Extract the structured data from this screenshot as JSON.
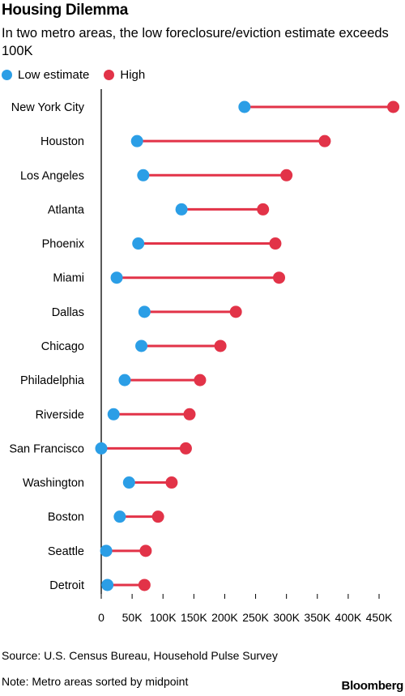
{
  "header": {
    "title": "Housing Dilemma",
    "subtitle": "In two metro areas, the low foreclosure/eviction estimate exceeds 100K"
  },
  "legend": {
    "low_label": "Low estimate",
    "high_label": "High"
  },
  "colors": {
    "low": "#2b9ee6",
    "high": "#e23348",
    "line": "#e23348",
    "axis": "#000000"
  },
  "footer": {
    "source": "Source: U.S. Census Bureau, Household Pulse Survey",
    "note": "Note: Metro areas sorted by midpoint",
    "brand": "Bloomberg"
  },
  "chart_data": {
    "type": "dumbbell",
    "title": "Housing Dilemma",
    "categories": [
      "New York City",
      "Houston",
      "Los Angeles",
      "Atlanta",
      "Phoenix",
      "Miami",
      "Dallas",
      "Chicago",
      "Philadelphia",
      "Riverside",
      "San Francisco",
      "Washington",
      "Boston",
      "Seattle",
      "Detroit"
    ],
    "series": [
      {
        "name": "Low estimate",
        "values": [
          232000,
          58000,
          68000,
          130000,
          60000,
          25000,
          70000,
          65000,
          38000,
          20000,
          0,
          45000,
          30000,
          8000,
          10000
        ]
      },
      {
        "name": "High",
        "values": [
          473000,
          362000,
          300000,
          262000,
          282000,
          288000,
          218000,
          193000,
          160000,
          143000,
          137000,
          114000,
          92000,
          72000,
          70000
        ]
      }
    ],
    "xlim": [
      0,
      450000
    ],
    "xticks": [
      0,
      50000,
      100000,
      150000,
      200000,
      250000,
      300000,
      350000,
      400000,
      450000
    ],
    "xtick_labels": [
      "0",
      "50K",
      "100K",
      "150K",
      "200K",
      "250K",
      "300K",
      "350K",
      "400K",
      "450K"
    ],
    "grid": false,
    "legend_position": "top-left"
  }
}
